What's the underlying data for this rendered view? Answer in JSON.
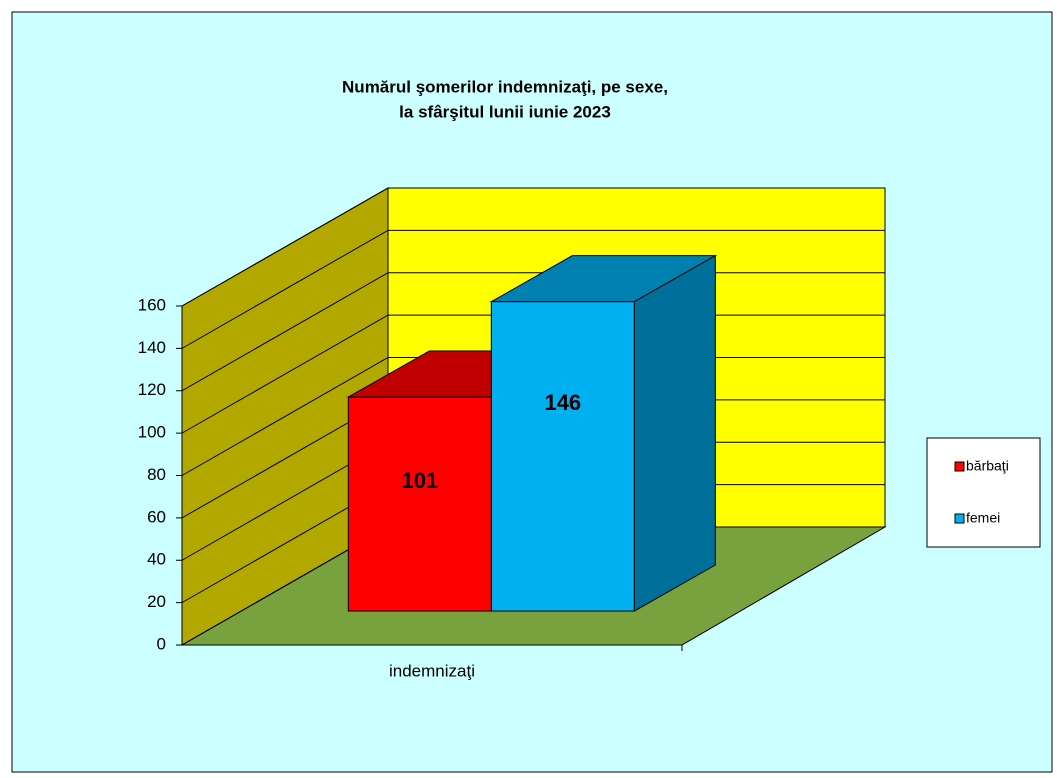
{
  "chart_data": {
    "type": "bar3d",
    "title": [
      "Numărul şomerilor  indemnizaţi,  pe sexe,",
      "la sfârşitul  lunii  iunie  2023"
    ],
    "categories": [
      "indemnizaţi"
    ],
    "series": [
      {
        "name": "bărbaţi",
        "color": "#ff0000",
        "top_color": "#c00000",
        "side_color": "#900000",
        "values": [
          101
        ]
      },
      {
        "name": "femei",
        "color": "#00b0f0",
        "top_color": "#0080b0",
        "side_color": "#006f99",
        "values": [
          146
        ]
      }
    ],
    "ylim": [
      0,
      160
    ],
    "yticks": [
      0,
      20,
      40,
      60,
      80,
      100,
      120,
      140,
      160
    ],
    "grid": true,
    "legend": "right",
    "background": "#ccffff",
    "wall_color": "#ffff00",
    "side_wall_color": "#b3a800",
    "floor_color": "#77a23d"
  }
}
